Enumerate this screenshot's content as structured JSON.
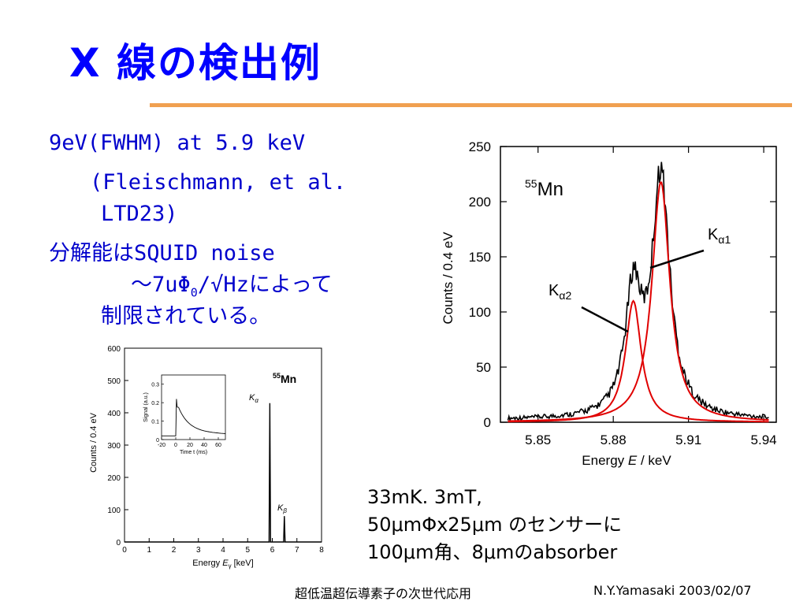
{
  "title": "X 線の検出例",
  "bullets": {
    "line1": "9eV(FWHM) at 5.9 keV",
    "line2": "(Fleischmann, et al.",
    "line3": "LTD23)",
    "line4": "分解能はSQUID noise",
    "line5_pre": "～7uΦ",
    "line5_sub": "0",
    "line5_post": "/√Hzによって",
    "line6": "制限されている。"
  },
  "caption": {
    "line1": "33mK. 3mT,",
    "line2": "50μmΦx25μm のセンサーに",
    "line3": "100μm角、8μmのabsorber"
  },
  "footer": {
    "center": "超低温超伝導素子の次世代応用",
    "right": "N.Y.Yamasaki 2003/02/07"
  },
  "chart_data": [
    {
      "type": "line",
      "annotation_element": "55Mn",
      "xlabel": "Energy E / keV",
      "ylabel": "Counts / 0.4 eV",
      "xlim": [
        5.835,
        5.945
      ],
      "ylim": [
        0,
        250
      ],
      "x_ticks": [
        "5.85",
        "5.88",
        "5.91",
        "5.94"
      ],
      "y_ticks": [
        "0",
        "50",
        "100",
        "150",
        "200",
        "250"
      ],
      "labels": [
        "Kα1",
        "Kα2"
      ],
      "series": [
        {
          "name": "Kα1",
          "color": "#e00000",
          "center": 5.899,
          "peak": 218
        },
        {
          "name": "Kα2",
          "color": "#e00000",
          "center": 5.888,
          "peak": 110
        }
      ],
      "data_color": "#000000"
    },
    {
      "type": "line",
      "annotation_element": "55Mn",
      "xlabel": "Energy Eγ [keV]",
      "ylabel": "Counts / 0.4 eV",
      "xlim": [
        0,
        8
      ],
      "ylim": [
        0,
        600
      ],
      "x_ticks": [
        "0",
        "1",
        "2",
        "3",
        "4",
        "5",
        "6",
        "7",
        "8"
      ],
      "y_ticks": [
        "0",
        "100",
        "200",
        "300",
        "400",
        "500",
        "600"
      ],
      "labels": [
        "Kα",
        "Kβ"
      ],
      "peaks": [
        {
          "x": 5.9,
          "y": 430
        },
        {
          "x": 6.49,
          "y": 80
        }
      ],
      "inset": {
        "xlabel": "Time t (ms)",
        "ylabel": "Signal (a.u.)",
        "x_ticks": [
          "-20",
          "0",
          "20",
          "40",
          "60"
        ],
        "y_ticks": [
          "0",
          "0.1",
          "0.2",
          "0.3"
        ],
        "xlim": [
          -20,
          70
        ],
        "ylim": [
          0,
          0.35
        ],
        "pulse_peak": 0.22
      }
    }
  ]
}
